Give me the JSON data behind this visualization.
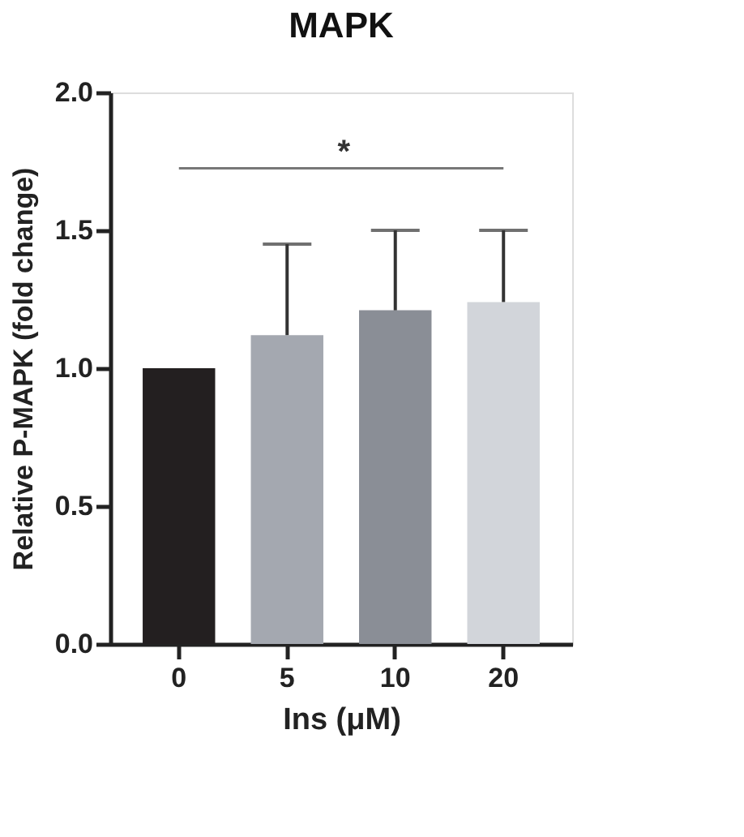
{
  "chart_data": {
    "type": "bar",
    "title": "MAPK",
    "xlabel": "Ins (μM)",
    "ylabel": "Relative P-MAPK (fold change)",
    "categories": [
      "0",
      "5",
      "10",
      "20"
    ],
    "values": [
      1.0,
      1.12,
      1.21,
      1.24
    ],
    "colors": [
      "#231f20",
      "#a4a8b0",
      "#8a8e96",
      "#d2d5da"
    ],
    "errors": [
      null,
      [
        1.12,
        1.45
      ],
      [
        1.21,
        1.5
      ],
      [
        1.24,
        1.5
      ]
    ],
    "ylim": [
      0,
      2.0
    ],
    "yticks": [
      {
        "value": 0,
        "label": "0.0"
      },
      {
        "value": 0.5,
        "label": "0.5"
      },
      {
        "value": 1.0,
        "label": "1.0"
      },
      {
        "value": 1.5,
        "label": "1.5"
      },
      {
        "value": 2.0,
        "label": "2.0"
      }
    ],
    "annotations": [
      "*"
    ],
    "grid": false
  }
}
